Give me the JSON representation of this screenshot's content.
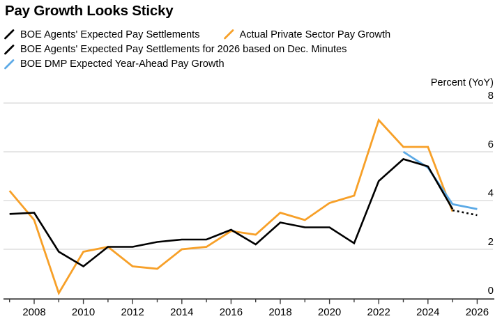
{
  "title": "Pay Growth Looks Sticky",
  "colors": {
    "black_line": "#000000",
    "orange_line": "#F7A028",
    "blue_line": "#5CAAE6",
    "gridline": "#D8D8D8",
    "axis": "#1A1A1A",
    "tick": "#3A3A3A",
    "background": "#FFFFFF",
    "text": "#000000"
  },
  "chart_data": {
    "type": "line",
    "title": "Pay Growth Looks Sticky",
    "xlabel": "",
    "ylabel": "Percent (YoY)",
    "ylim": [
      0,
      8
    ],
    "xlim": [
      2006.8,
      2026.8
    ],
    "grid": "horizontal-only",
    "legend_position": "top-left",
    "y_gridlines": [
      2,
      4,
      6,
      8
    ],
    "y_tick_labels": [
      "8",
      "6",
      "4",
      "2",
      "0"
    ],
    "y_tick_values": [
      8,
      6,
      4,
      2,
      0
    ],
    "x_ticks": [
      2007,
      2008,
      2009,
      2010,
      2011,
      2012,
      2013,
      2014,
      2015,
      2016,
      2017,
      2018,
      2019,
      2020,
      2021,
      2022,
      2023,
      2024,
      2025,
      2026
    ],
    "x_tick_labels": [
      2008,
      2010,
      2012,
      2014,
      2016,
      2018,
      2020,
      2022,
      2024,
      2026
    ],
    "series": [
      {
        "name": "BOE Agents' Expected Pay Settlements",
        "color": "#000000",
        "style": "solid",
        "x": [
          2007,
          2008,
          2009,
          2010,
          2011,
          2012,
          2013,
          2014,
          2015,
          2016,
          2017,
          2018,
          2019,
          2020,
          2021,
          2022,
          2023,
          2024,
          2025
        ],
        "values": [
          3.45,
          3.5,
          1.9,
          1.3,
          2.1,
          2.1,
          2.3,
          2.4,
          2.4,
          2.8,
          2.2,
          3.1,
          2.9,
          2.9,
          2.25,
          4.8,
          5.7,
          5.4,
          3.65
        ]
      },
      {
        "name": "Actual Private Sector Pay Growth",
        "color": "#F7A028",
        "style": "solid",
        "x": [
          2007,
          2008,
          2009,
          2010,
          2011,
          2012,
          2013,
          2014,
          2015,
          2016,
          2017,
          2018,
          2019,
          2020,
          2021,
          2022,
          2023,
          2024,
          2025
        ],
        "values": [
          4.4,
          3.2,
          0.2,
          1.9,
          2.1,
          1.3,
          1.2,
          2.0,
          2.1,
          2.75,
          2.6,
          3.5,
          3.2,
          3.9,
          4.2,
          7.3,
          6.2,
          6.2,
          3.55
        ]
      },
      {
        "name": "BOE Agents' Expected Pay Settlements for 2026 based on Dec. Minutes",
        "color": "#000000",
        "style": "dotted",
        "x": [
          2025,
          2026
        ],
        "values": [
          3.6,
          3.4
        ]
      },
      {
        "name": "BOE DMP Expected Year-Ahead Pay Growth",
        "color": "#5CAAE6",
        "style": "solid",
        "x": [
          2023,
          2024,
          2025,
          2026
        ],
        "values": [
          6.0,
          5.35,
          3.85,
          3.65
        ]
      }
    ]
  },
  "legend": {
    "rows": [
      [
        0,
        1
      ],
      [
        2
      ],
      [
        3
      ]
    ]
  }
}
